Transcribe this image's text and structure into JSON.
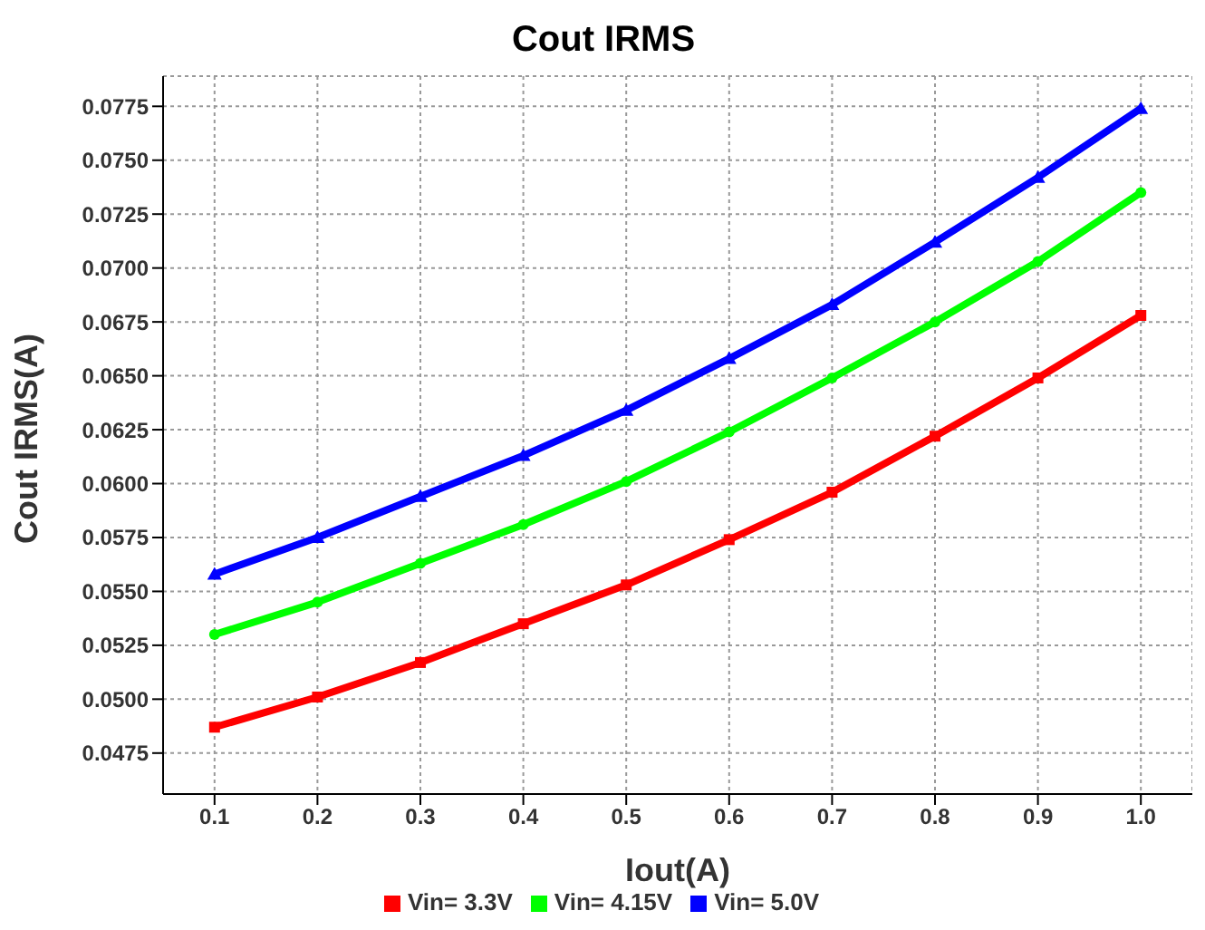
{
  "chart_data": {
    "type": "line",
    "title": "Cout IRMS",
    "xlabel": "Iout(A)",
    "ylabel": "Cout IRMS(A)",
    "x": [
      0.1,
      0.2,
      0.3,
      0.4,
      0.5,
      0.6,
      0.7,
      0.8,
      0.9,
      1.0
    ],
    "series": [
      {
        "name": "Vin= 3.3V",
        "color": "#ff0000",
        "marker": "square",
        "values": [
          0.0487,
          0.0501,
          0.0517,
          0.0535,
          0.0553,
          0.0574,
          0.0596,
          0.0622,
          0.0649,
          0.0678
        ]
      },
      {
        "name": "Vin= 4.15V",
        "color": "#00ff00",
        "marker": "circle",
        "values": [
          0.053,
          0.0545,
          0.0563,
          0.0581,
          0.0601,
          0.0624,
          0.0649,
          0.0675,
          0.0703,
          0.0735
        ]
      },
      {
        "name": "Vin= 5.0V",
        "color": "#0000ff",
        "marker": "triangle",
        "values": [
          0.0558,
          0.0575,
          0.0594,
          0.0613,
          0.0634,
          0.0658,
          0.0683,
          0.0712,
          0.0742,
          0.0774
        ]
      }
    ],
    "xlim": [
      0.05,
      1.05
    ],
    "xticks": [
      {
        "value": 0.1,
        "label": "0.1"
      },
      {
        "value": 0.2,
        "label": "0.2"
      },
      {
        "value": 0.3,
        "label": "0.3"
      },
      {
        "value": 0.4,
        "label": "0.4"
      },
      {
        "value": 0.5,
        "label": "0.5"
      },
      {
        "value": 0.6,
        "label": "0.6"
      },
      {
        "value": 0.7,
        "label": "0.7"
      },
      {
        "value": 0.8,
        "label": "0.8"
      },
      {
        "value": 0.9,
        "label": "0.9"
      },
      {
        "value": 1.0,
        "label": "1.0"
      }
    ],
    "ylim": [
      0.0456,
      0.0789
    ],
    "yticks": [
      0.0475,
      {
        "value": 0.05,
        "label": "0.0500"
      },
      0.0525,
      {
        "value": 0.055,
        "label": "0.0550"
      },
      0.0575,
      {
        "value": 0.06,
        "label": "0.0600"
      },
      0.0625,
      {
        "value": 0.065,
        "label": "0.0650"
      },
      0.0675,
      {
        "value": 0.07,
        "label": "0.0700"
      },
      0.0725,
      {
        "value": 0.075,
        "label": "0.0750"
      },
      0.0775
    ],
    "grid": true,
    "legend": "bottom",
    "line_style": "solid"
  }
}
